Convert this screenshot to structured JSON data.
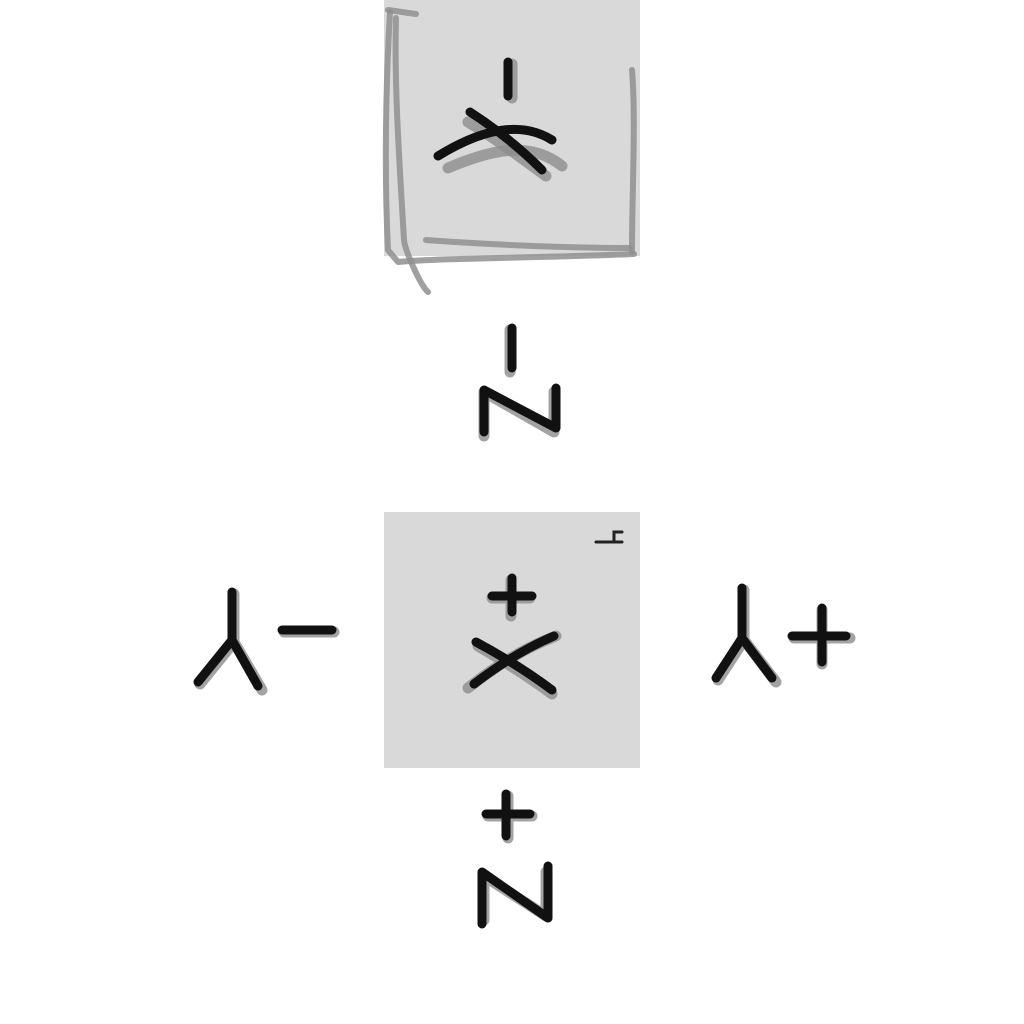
{
  "faces": {
    "back": {
      "label": "-X"
    },
    "front": {
      "label": "+X",
      "corner_mark": "F"
    }
  },
  "axes": {
    "z_negative": {
      "label": "-Z"
    },
    "z_positive": {
      "label": "+Z"
    },
    "y_negative": {
      "label": "Y-"
    },
    "y_positive": {
      "label": "Y+"
    }
  },
  "colors": {
    "tile": "#d9d9d9",
    "ink": "#111111",
    "sketch": "#8f8f8f"
  }
}
